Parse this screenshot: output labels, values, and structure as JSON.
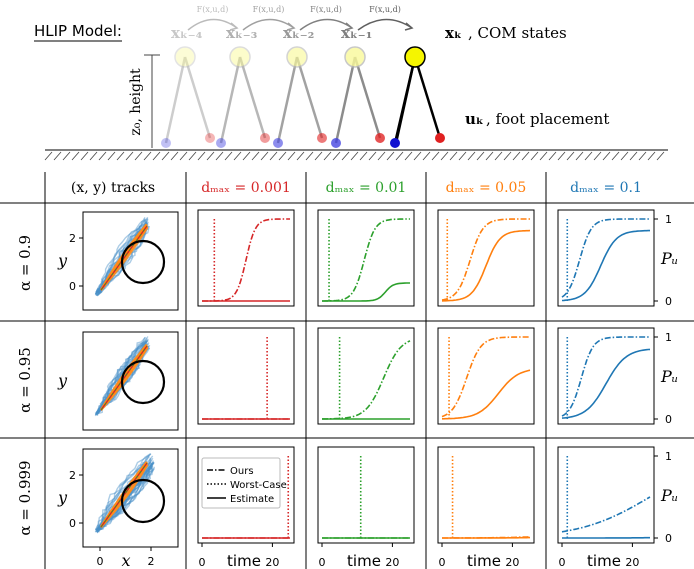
{
  "diagram": {
    "title": "HLIP Model:",
    "height_label": "z₀, height",
    "com_labels": [
      "xₖ₋₄",
      "xₖ₋₃",
      "xₖ₋₂",
      "xₖ₋₁",
      "xₖ"
    ],
    "arc_labels": [
      "F(x,u,d)",
      "F(x,u,d)",
      "F(x,u,d)",
      "F(x,u,d)"
    ],
    "com_states_label": ", COM states",
    "foot_label": "uₖ",
    "foot_text": ", foot placement"
  },
  "grid": {
    "track_header": "(x, y) tracks",
    "col_headers": [
      "dₘₐₓ = 0.001",
      "dₘₐₓ = 0.01",
      "dₘₐₓ = 0.05",
      "dₘₐₓ = 0.1"
    ],
    "row_headers": [
      "α = 0.9",
      "α = 0.95",
      "α = 0.999"
    ],
    "y_axis_label": "y",
    "x_axis_label": "x",
    "track_ticks_y": [
      "2",
      "0"
    ],
    "track_ticks_x": [
      "0",
      "2"
    ],
    "time_label": "time",
    "time_ticks": [
      "0",
      "20"
    ],
    "p_label": "Pᵤ",
    "p_ticks": [
      "1",
      "0"
    ],
    "legend": [
      "Ours",
      "Worst-Case",
      "Estimate"
    ]
  },
  "chart_data": {
    "type": "line",
    "x_label": "time",
    "y_label": "Pᵤ",
    "xlim": [
      0,
      25
    ],
    "ylim": [
      0,
      1
    ],
    "series_styles": {
      "Ours": "dash-dot",
      "Worst-Case": "dotted",
      "Estimate": "solid"
    },
    "colors": [
      "#d62728",
      "#2ca02c",
      "#ff7f0e",
      "#1f77b4"
    ],
    "panels": [
      [
        {
          "d_max": 0.001,
          "worst_case_t": 3.5,
          "ours": {
            "t0": 12.5,
            "k": 0.75,
            "max": 1.0
          },
          "estimate": {
            "t0": 0,
            "k": 1,
            "max": 0.0
          }
        },
        {
          "d_max": 0.01,
          "worst_case_t": 2.0,
          "ours": {
            "t0": 12.0,
            "k": 0.65,
            "max": 1.0
          },
          "estimate": {
            "t0": 18.0,
            "k": 0.9,
            "max": 0.22
          }
        },
        {
          "d_max": 0.05,
          "worst_case_t": 1.5,
          "ours": {
            "t0": 8.0,
            "k": 0.55,
            "max": 1.0
          },
          "estimate": {
            "t0": 12.5,
            "k": 0.5,
            "max": 0.86
          }
        },
        {
          "d_max": 0.1,
          "worst_case_t": 1.5,
          "ours": {
            "t0": 5.0,
            "k": 0.6,
            "max": 1.0
          },
          "estimate": {
            "t0": 11.0,
            "k": 0.45,
            "max": 0.86
          }
        }
      ],
      [
        {
          "d_max": 0.001,
          "worst_case_t": 18.5,
          "ours": {
            "t0": 30,
            "k": 1,
            "max": 0.02
          },
          "estimate": {
            "t0": 30,
            "k": 1,
            "max": 0.02
          }
        },
        {
          "d_max": 0.01,
          "worst_case_t": 5.0,
          "ours": {
            "t0": 17.5,
            "k": 0.4,
            "max": 1.0
          },
          "estimate": {
            "t0": 0,
            "k": 1,
            "max": 0.0
          }
        },
        {
          "d_max": 0.05,
          "worst_case_t": 2.0,
          "ours": {
            "t0": 7.0,
            "k": 0.5,
            "max": 1.0
          },
          "estimate": {
            "t0": 16.0,
            "k": 0.35,
            "max": 0.62
          }
        },
        {
          "d_max": 0.1,
          "worst_case_t": 1.5,
          "ours": {
            "t0": 5.5,
            "k": 0.6,
            "max": 1.0
          },
          "estimate": {
            "t0": 12.5,
            "k": 0.35,
            "max": 0.86
          }
        }
      ],
      [
        {
          "d_max": 0.001,
          "worst_case_t": 24.5,
          "ours": {
            "t0": 0,
            "k": 1,
            "max": 0.0
          },
          "estimate": {
            "t0": 0,
            "k": 1,
            "max": 0.0
          }
        },
        {
          "d_max": 0.01,
          "worst_case_t": 11.0,
          "ours": {
            "t0": 0,
            "k": 1,
            "max": 0.0
          },
          "estimate": {
            "t0": 0,
            "k": 1,
            "max": 0.0
          }
        },
        {
          "d_max": 0.05,
          "worst_case_t": 3.0,
          "ours": {
            "t0": 40,
            "k": 0.15,
            "max": 0.15
          },
          "estimate": {
            "t0": 40,
            "k": 0.15,
            "max": 0.05
          }
        },
        {
          "d_max": 0.1,
          "worst_case_t": 1.5,
          "ours": {
            "t0": 25,
            "k": 0.1,
            "max": 1.0
          },
          "estimate": {
            "t0": 40,
            "k": 0.15,
            "max": 0.04
          }
        }
      ]
    ]
  }
}
